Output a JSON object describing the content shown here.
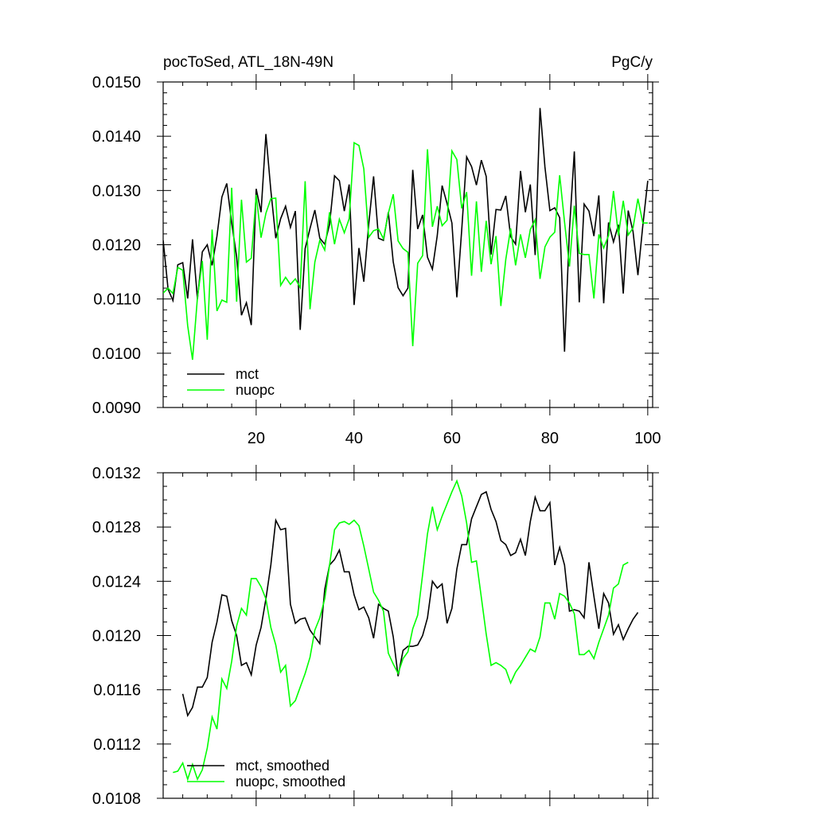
{
  "chart_data": [
    {
      "type": "line",
      "title_left": "pocToSed, ATL_18N-49N",
      "title_right": "PgC/y",
      "xlim": [
        1,
        101
      ],
      "ylim": [
        0.009,
        0.015
      ],
      "x_ticks": [
        20,
        40,
        60,
        80,
        100
      ],
      "y_ticks": [
        "0.0090",
        "0.0100",
        "0.0110",
        "0.0120",
        "0.0130",
        "0.0140",
        "0.0150"
      ],
      "legend_location": "bottom-left",
      "series": [
        {
          "name": "mct",
          "color": "#000000",
          "x_start": 1,
          "values": [
            0.01208,
            0.01118,
            0.01097,
            0.01163,
            0.01167,
            0.01101,
            0.0121,
            0.011,
            0.01187,
            0.012,
            0.01162,
            0.01216,
            0.01288,
            0.01313,
            0.0124,
            0.01178,
            0.0107,
            0.01093,
            0.01052,
            0.01303,
            0.0126,
            0.01404,
            0.013,
            0.01212,
            0.01248,
            0.01271,
            0.01232,
            0.01262,
            0.01043,
            0.01193,
            0.0123,
            0.01264,
            0.01212,
            0.01201,
            0.01238,
            0.01327,
            0.01318,
            0.01262,
            0.01311,
            0.01089,
            0.01194,
            0.01132,
            0.01238,
            0.01326,
            0.01212,
            0.01208,
            0.0126,
            0.01168,
            0.01121,
            0.01106,
            0.0112,
            0.01338,
            0.01229,
            0.01255,
            0.01177,
            0.01155,
            0.01217,
            0.01309,
            0.01276,
            0.0124,
            0.01103,
            0.01227,
            0.01362,
            0.01344,
            0.0131,
            0.01356,
            0.01326,
            0.01182,
            0.01265,
            0.01264,
            0.0129,
            0.01215,
            0.01201,
            0.01336,
            0.0126,
            0.01311,
            0.01181,
            0.01452,
            0.01343,
            0.01263,
            0.01268,
            0.0125,
            0.01003,
            0.01228,
            0.01372,
            0.01094,
            0.01275,
            0.01262,
            0.01216,
            0.01291,
            0.01092,
            0.01241,
            0.01205,
            0.01237,
            0.0111,
            0.01263,
            0.01224,
            0.01144,
            0.01236,
            0.01318
          ]
        },
        {
          "name": "nuopc",
          "color": "#00ff00",
          "x_start": 1,
          "values": [
            0.01111,
            0.0112,
            0.0111,
            0.01158,
            0.01153,
            0.01051,
            0.00988,
            0.01103,
            0.0117,
            0.01025,
            0.01228,
            0.01078,
            0.01098,
            0.01094,
            0.01305,
            0.01095,
            0.01283,
            0.01168,
            0.01175,
            0.01292,
            0.01213,
            0.01258,
            0.01285,
            0.01286,
            0.01125,
            0.0114,
            0.01127,
            0.01137,
            0.01121,
            0.01317,
            0.01081,
            0.01168,
            0.01208,
            0.0119,
            0.0126,
            0.01201,
            0.01247,
            0.01222,
            0.01248,
            0.01388,
            0.01383,
            0.0134,
            0.01214,
            0.01226,
            0.01229,
            0.01211,
            0.01258,
            0.01293,
            0.01207,
            0.01193,
            0.01186,
            0.01013,
            0.01166,
            0.0118,
            0.01376,
            0.01233,
            0.01271,
            0.01235,
            0.01245,
            0.01373,
            0.01357,
            0.01267,
            0.01297,
            0.01143,
            0.0128,
            0.0115,
            0.01244,
            0.01164,
            0.01216,
            0.01087,
            0.01173,
            0.0123,
            0.01162,
            0.01219,
            0.01176,
            0.01228,
            0.01246,
            0.01137,
            0.01196,
            0.01214,
            0.01223,
            0.01328,
            0.01242,
            0.0116,
            0.01272,
            0.01184,
            0.01182,
            0.01182,
            0.01101,
            0.01219,
            0.01194,
            0.01217,
            0.01299,
            0.01217,
            0.01281,
            0.01218,
            0.01231,
            0.01285,
            0.0124,
            0.0124
          ]
        }
      ]
    },
    {
      "type": "line",
      "xlim": [
        1,
        101
      ],
      "ylim": [
        0.0108,
        0.0132
      ],
      "y_ticks": [
        "0.0108",
        "0.0112",
        "0.0116",
        "0.0120",
        "0.0124",
        "0.0128",
        "0.0132"
      ],
      "legend_location": "bottom-left",
      "series": [
        {
          "name": "mct, smoothed",
          "color": "#000000",
          "x_start": 5,
          "values": [
            0.01157,
            0.01141,
            0.01147,
            0.01162,
            0.01162,
            0.01169,
            0.01195,
            0.0121,
            0.0123,
            0.01229,
            0.01211,
            0.012,
            0.01178,
            0.0118,
            0.01171,
            0.01193,
            0.01206,
            0.01227,
            0.01252,
            0.01285,
            0.01278,
            0.01279,
            0.01223,
            0.01209,
            0.01212,
            0.01213,
            0.01204,
            0.01199,
            0.01194,
            0.01234,
            0.01252,
            0.01256,
            0.01263,
            0.01247,
            0.01247,
            0.0123,
            0.01219,
            0.01221,
            0.01213,
            0.01198,
            0.01223,
            0.0122,
            0.01218,
            0.01199,
            0.0117,
            0.01189,
            0.01192,
            0.01192,
            0.01193,
            0.012,
            0.01213,
            0.0124,
            0.01235,
            0.01238,
            0.01209,
            0.0122,
            0.01249,
            0.01267,
            0.01267,
            0.01286,
            0.01295,
            0.01304,
            0.01306,
            0.01293,
            0.01284,
            0.0127,
            0.01267,
            0.01259,
            0.01261,
            0.01271,
            0.01259,
            0.01284,
            0.01302,
            0.01292,
            0.01292,
            0.01298,
            0.01252,
            0.01265,
            0.01252,
            0.01218,
            0.01219,
            0.01218,
            0.01213,
            0.01254,
            0.01229,
            0.01205,
            0.01231,
            0.01224,
            0.01201,
            0.01208,
            0.01197,
            0.01205,
            0.01212,
            0.01217
          ]
        },
        {
          "name": "nuopc, smoothed",
          "color": "#00ff00",
          "x_start": 3,
          "values": [
            0.01099,
            0.011,
            0.01106,
            0.01094,
            0.01105,
            0.01094,
            0.01101,
            0.01117,
            0.0114,
            0.01131,
            0.01168,
            0.01161,
            0.01181,
            0.01207,
            0.0122,
            0.01215,
            0.01242,
            0.01242,
            0.01236,
            0.01227,
            0.01206,
            0.01193,
            0.01173,
            0.01178,
            0.01148,
            0.01152,
            0.01162,
            0.01172,
            0.01184,
            0.01204,
            0.01213,
            0.01227,
            0.01252,
            0.01278,
            0.01283,
            0.01284,
            0.01282,
            0.01285,
            0.01281,
            0.01266,
            0.01249,
            0.01232,
            0.01226,
            0.01218,
            0.01187,
            0.01179,
            0.01172,
            0.01183,
            0.01188,
            0.01205,
            0.01215,
            0.01245,
            0.01275,
            0.01295,
            0.01278,
            0.01288,
            0.01297,
            0.01306,
            0.01314,
            0.01303,
            0.01283,
            0.01254,
            0.01255,
            0.01228,
            0.01201,
            0.01178,
            0.0118,
            0.01178,
            0.01175,
            0.01165,
            0.01173,
            0.01178,
            0.01184,
            0.0119,
            0.01188,
            0.01199,
            0.01224,
            0.01224,
            0.01212,
            0.01231,
            0.01229,
            0.01224,
            0.01216,
            0.01186,
            0.01186,
            0.01189,
            0.01183,
            0.01195,
            0.01205,
            0.01215,
            0.01235,
            0.01238,
            0.01252,
            0.01254
          ]
        }
      ]
    }
  ]
}
